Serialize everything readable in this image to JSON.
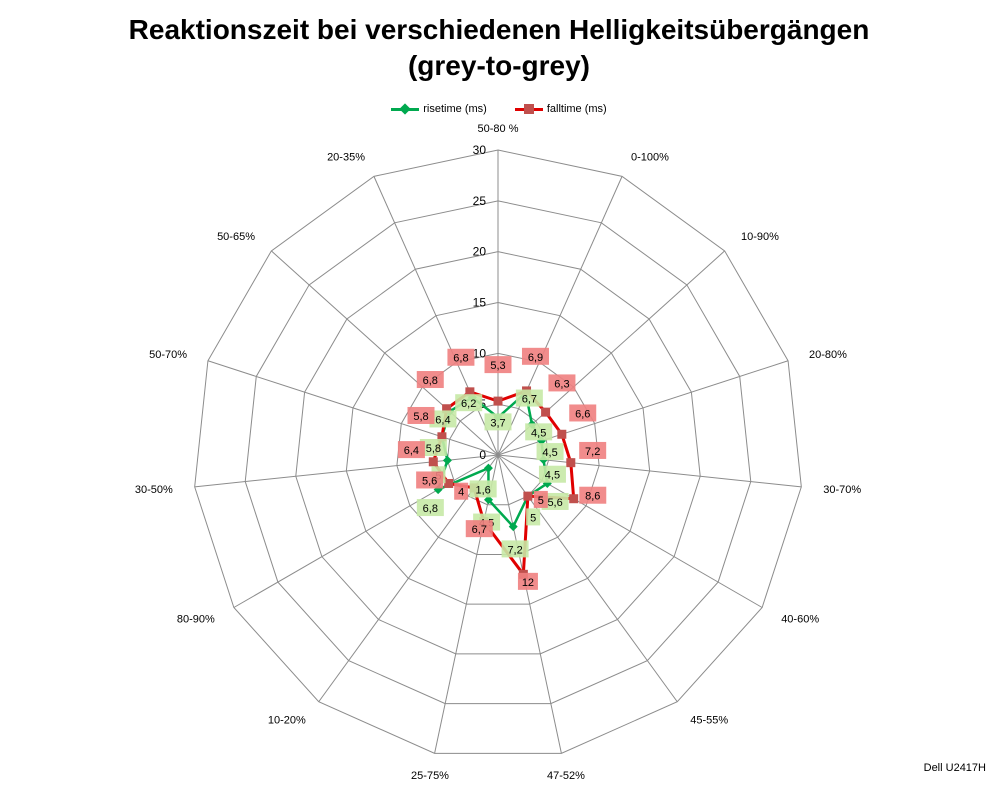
{
  "chart_data": {
    "type": "radar",
    "title": [
      "Reaktionszeit bei verschiedenen Helligkeitsübergängen",
      "(grey-to-grey)"
    ],
    "categories": [
      "50-80 %",
      "0-100%",
      "10-90%",
      "20-80%",
      "30-70%",
      "40-60%",
      "45-55%",
      "47-52%",
      "25-75%",
      "10-20%",
      "80-90%",
      "30-50%",
      "50-70%",
      "50-65%",
      "20-35%"
    ],
    "radial_axis": {
      "min": 0,
      "max": 30,
      "ticks": [
        0,
        5,
        10,
        15,
        20,
        25,
        30
      ]
    },
    "grid": true,
    "legend_position": "top",
    "series": [
      {
        "name": "risetime (ms)",
        "color": "#00a94f",
        "marker": "diamond",
        "label_bg": "#c6e9a6",
        "values": [
          3.7,
          6.7,
          4.5,
          4.5,
          4.5,
          5.6,
          5,
          7.2,
          4.5,
          1.6,
          6.8,
          5,
          5.8,
          6.4,
          6.2
        ],
        "labels": [
          "3,7",
          "6,7",
          "4,5",
          "4,5",
          "4,5",
          "5,6",
          "5",
          "7,2",
          "4,5",
          "1,6",
          "6,8",
          "5",
          "5,8",
          "6,4",
          "6,2"
        ]
      },
      {
        "name": "falltime (ms)",
        "color": "#e00000",
        "marker": "square",
        "label_bg": "#f08080",
        "values": [
          5.3,
          6.9,
          6.3,
          6.6,
          7.2,
          8.6,
          5,
          12,
          6.7,
          4,
          5.6,
          6.4,
          5.8,
          6.8,
          6.8
        ],
        "labels": [
          "5,3",
          "6,9",
          "6,3",
          "6,6",
          "7,2",
          "8,6",
          "5",
          "12",
          "6,7",
          "4",
          "5,6",
          "6,4",
          "5,8",
          "6,8",
          "6,8"
        ]
      }
    ]
  },
  "footnote": "Dell U2417H"
}
